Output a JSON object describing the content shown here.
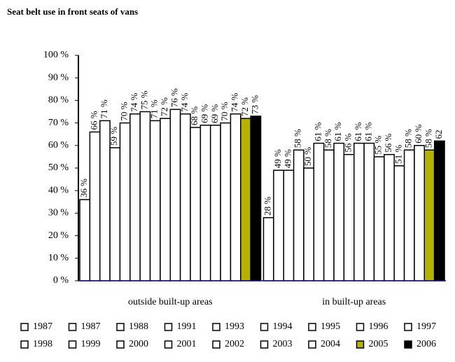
{
  "chart_data": {
    "type": "bar",
    "title": "Seat belt use in front seats of vans",
    "categories": [
      "outside built-up areas",
      "in built-up areas"
    ],
    "ylim": [
      0,
      100
    ],
    "yticks": [
      {
        "value": 0,
        "label": "0 %"
      },
      {
        "value": 10,
        "label": "10 %"
      },
      {
        "value": 20,
        "label": "20 %"
      },
      {
        "value": 30,
        "label": "30 %"
      },
      {
        "value": 40,
        "label": "40 %"
      },
      {
        "value": 50,
        "label": "50 %"
      },
      {
        "value": 60,
        "label": "60 %"
      },
      {
        "value": 70,
        "label": "70 %"
      },
      {
        "value": 80,
        "label": "80 %"
      },
      {
        "value": 90,
        "label": "90 %"
      },
      {
        "value": 100,
        "label": "100 %"
      }
    ],
    "series": [
      {
        "name": "1987",
        "color": "#ffffff",
        "values": [
          36,
          28
        ],
        "value_labels": [
          "36 %",
          "28 %"
        ]
      },
      {
        "name": "1987",
        "color": "#ffffff",
        "values": [
          66,
          49
        ],
        "value_labels": [
          "66 %",
          "49 %"
        ]
      },
      {
        "name": "1988",
        "color": "#ffffff",
        "values": [
          71,
          49
        ],
        "value_labels": [
          "71 %",
          "49 %"
        ]
      },
      {
        "name": "1991",
        "color": "#ffffff",
        "values": [
          59,
          58
        ],
        "value_labels": [
          "59 %",
          "58 %"
        ]
      },
      {
        "name": "1993",
        "color": "#ffffff",
        "values": [
          70,
          50
        ],
        "value_labels": [
          "70 %",
          "50 %"
        ]
      },
      {
        "name": "1994",
        "color": "#ffffff",
        "values": [
          74,
          61
        ],
        "value_labels": [
          "74 %",
          "61 %"
        ]
      },
      {
        "name": "1995",
        "color": "#ffffff",
        "values": [
          75,
          58
        ],
        "value_labels": [
          "75 %",
          "58 %"
        ]
      },
      {
        "name": "1996",
        "color": "#ffffff",
        "values": [
          71,
          61
        ],
        "value_labels": [
          "71 %",
          "61 %"
        ]
      },
      {
        "name": "1997",
        "color": "#ffffff",
        "values": [
          72,
          56
        ],
        "value_labels": [
          "72 %",
          "56 %"
        ]
      },
      {
        "name": "1998",
        "color": "#ffffff",
        "values": [
          76,
          61
        ],
        "value_labels": [
          "76 %",
          "61 %"
        ]
      },
      {
        "name": "1999",
        "color": "#ffffff",
        "values": [
          74,
          61
        ],
        "value_labels": [
          "74 %",
          "61 %"
        ]
      },
      {
        "name": "2000",
        "color": "#ffffff",
        "values": [
          68,
          55
        ],
        "value_labels": [
          "68 %",
          "55 %"
        ]
      },
      {
        "name": "2001",
        "color": "#ffffff",
        "values": [
          69,
          56
        ],
        "value_labels": [
          "69 %",
          "56 %"
        ]
      },
      {
        "name": "2002",
        "color": "#ffffff",
        "values": [
          69,
          51
        ],
        "value_labels": [
          "69 %",
          "51 %"
        ]
      },
      {
        "name": "2003",
        "color": "#ffffff",
        "values": [
          70,
          58
        ],
        "value_labels": [
          "70 %",
          "58 %"
        ]
      },
      {
        "name": "2004",
        "color": "#ffffff",
        "values": [
          74,
          60
        ],
        "value_labels": [
          "74 %",
          "60 %"
        ]
      },
      {
        "name": "2005",
        "color": "#b5b300",
        "values": [
          72,
          58
        ],
        "value_labels": [
          "72 %",
          "58 %"
        ]
      },
      {
        "name": "2006",
        "color": "#000000",
        "values": [
          73,
          62
        ],
        "value_labels": [
          "73 %",
          "62"
        ]
      }
    ]
  }
}
